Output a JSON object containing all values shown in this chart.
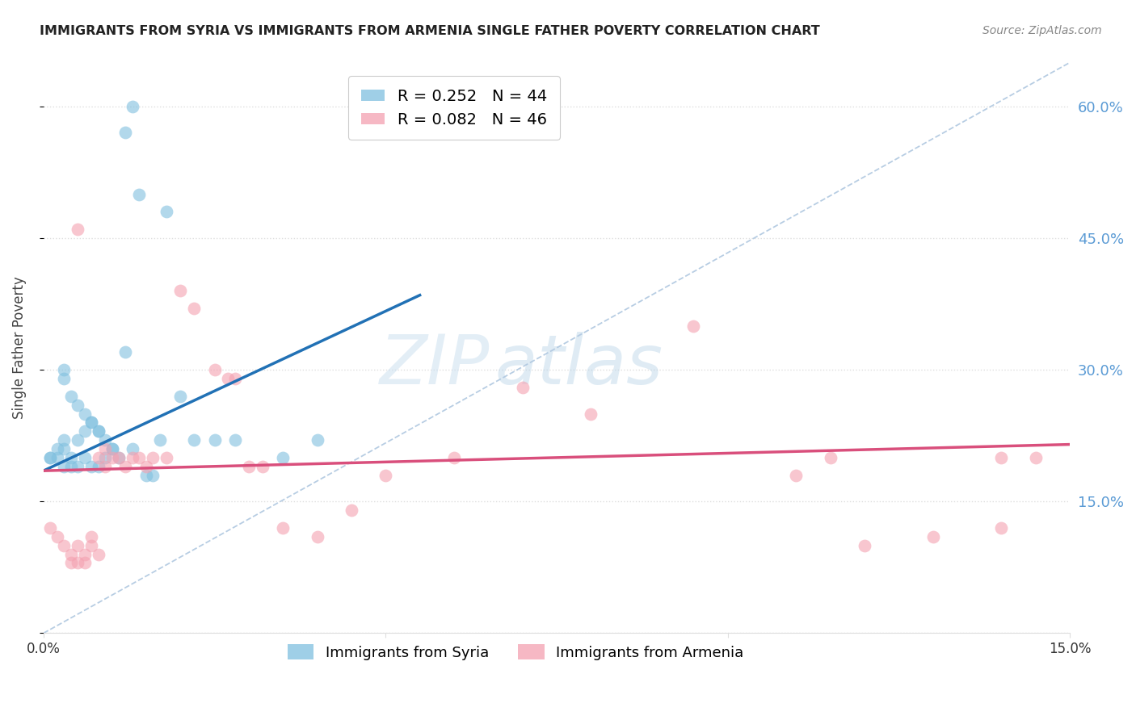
{
  "title": "IMMIGRANTS FROM SYRIA VS IMMIGRANTS FROM ARMENIA SINGLE FATHER POVERTY CORRELATION CHART",
  "source": "Source: ZipAtlas.com",
  "ylabel": "Single Father Poverty",
  "xlim": [
    0.0,
    0.15
  ],
  "ylim": [
    0.0,
    0.65
  ],
  "syria_color": "#7fbfdf",
  "armenia_color": "#f4a0b0",
  "syria_R": 0.252,
  "syria_N": 44,
  "armenia_R": 0.082,
  "armenia_N": 46,
  "syria_line_x": [
    0.0,
    0.055
  ],
  "syria_line_y": [
    0.185,
    0.385
  ],
  "armenia_line_x": [
    0.0,
    0.15
  ],
  "armenia_line_y": [
    0.185,
    0.215
  ],
  "diag_line_x": [
    0.0,
    0.15
  ],
  "diag_line_y": [
    0.0,
    0.65
  ],
  "yticks": [
    0.0,
    0.15,
    0.3,
    0.45,
    0.6
  ],
  "ytick_labels_right": [
    "",
    "15.0%",
    "30.0%",
    "45.0%",
    "60.0%"
  ],
  "xticks": [
    0.0,
    0.05,
    0.1,
    0.15
  ],
  "xtick_labels": [
    "0.0%",
    "",
    "",
    "15.0%"
  ],
  "grid_color": "#dedede",
  "watermark_zip": "ZIP",
  "watermark_atlas": "atlas",
  "syria_scatter_x": [
    0.012,
    0.013,
    0.014,
    0.018,
    0.003,
    0.003,
    0.004,
    0.005,
    0.006,
    0.007,
    0.008,
    0.009,
    0.01,
    0.011,
    0.012,
    0.013,
    0.015,
    0.016,
    0.017,
    0.02,
    0.022,
    0.025,
    0.001,
    0.002,
    0.003,
    0.004,
    0.005,
    0.006,
    0.007,
    0.008,
    0.001,
    0.002,
    0.003,
    0.003,
    0.004,
    0.005,
    0.006,
    0.007,
    0.008,
    0.009,
    0.01,
    0.035,
    0.04,
    0.028
  ],
  "syria_scatter_y": [
    0.57,
    0.6,
    0.5,
    0.48,
    0.3,
    0.29,
    0.27,
    0.26,
    0.25,
    0.24,
    0.23,
    0.22,
    0.21,
    0.2,
    0.32,
    0.21,
    0.18,
    0.18,
    0.22,
    0.27,
    0.22,
    0.22,
    0.2,
    0.2,
    0.19,
    0.19,
    0.19,
    0.2,
    0.19,
    0.19,
    0.2,
    0.21,
    0.22,
    0.21,
    0.2,
    0.22,
    0.23,
    0.24,
    0.23,
    0.2,
    0.21,
    0.2,
    0.22,
    0.22
  ],
  "armenia_scatter_x": [
    0.005,
    0.02,
    0.022,
    0.025,
    0.027,
    0.095,
    0.11,
    0.115,
    0.14,
    0.14,
    0.001,
    0.002,
    0.003,
    0.004,
    0.004,
    0.005,
    0.005,
    0.006,
    0.006,
    0.007,
    0.007,
    0.008,
    0.008,
    0.009,
    0.009,
    0.01,
    0.011,
    0.012,
    0.013,
    0.014,
    0.015,
    0.016,
    0.018,
    0.06,
    0.07,
    0.08,
    0.03,
    0.035,
    0.04,
    0.05,
    0.045,
    0.028,
    0.032,
    0.12,
    0.13,
    0.145
  ],
  "armenia_scatter_y": [
    0.46,
    0.39,
    0.37,
    0.3,
    0.29,
    0.35,
    0.18,
    0.2,
    0.12,
    0.2,
    0.12,
    0.11,
    0.1,
    0.08,
    0.09,
    0.08,
    0.1,
    0.08,
    0.09,
    0.1,
    0.11,
    0.09,
    0.2,
    0.19,
    0.21,
    0.2,
    0.2,
    0.19,
    0.2,
    0.2,
    0.19,
    0.2,
    0.2,
    0.2,
    0.28,
    0.25,
    0.19,
    0.12,
    0.11,
    0.18,
    0.14,
    0.29,
    0.19,
    0.1,
    0.11,
    0.2
  ]
}
